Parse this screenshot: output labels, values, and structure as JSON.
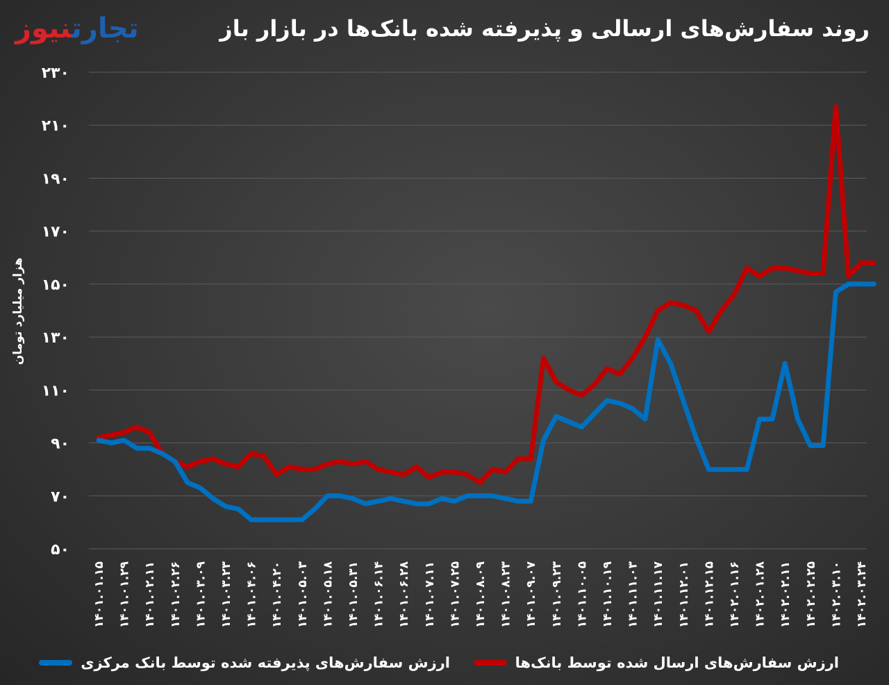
{
  "title": "روند سفارش‌های ارسالی و پذیرفته شده بانک‌ها در بازار باز",
  "logo": {
    "part1": "تجارت",
    "part2": "نیوز"
  },
  "chart_data": {
    "type": "line",
    "title": "روند سفارش‌های ارسالی و پذیرفته شده بانک‌ها در بازار باز",
    "ylabel": "هزار میلیارد تومان",
    "xlabel": "",
    "ylim": [
      50,
      230
    ],
    "yticks": [
      50,
      70,
      90,
      110,
      130,
      150,
      170,
      190,
      210,
      230
    ],
    "ytick_labels": [
      "۵۰",
      "۷۰",
      "۹۰",
      "۱۱۰",
      "۱۳۰",
      "۱۵۰",
      "۱۷۰",
      "۱۹۰",
      "۲۱۰",
      "۲۳۰"
    ],
    "grid": true,
    "legend_position": "bottom",
    "xtick_labels": [
      "۱۴۰۱.۰۱.۱۵",
      "۱۴۰۱.۰۱.۲۹",
      "۱۴۰۱.۰۲.۱۱",
      "۱۴۰۱.۰۲.۲۶",
      "۱۴۰۱.۰۳.۰۹",
      "۱۴۰۱.۰۳.۲۳",
      "۱۴۰۱.۰۴.۰۶",
      "۱۴۰۱.۰۴.۲۰",
      "۱۴۰۱.۰۵.۰۳",
      "۱۴۰۱.۰۵.۱۸",
      "۱۴۰۱.۰۵.۳۱",
      "۱۴۰۱.۰۶.۱۴",
      "۱۴۰۱.۰۶.۲۸",
      "۱۴۰۱.۰۷.۱۱",
      "۱۴۰۱.۰۷.۲۵",
      "۱۴۰۱.۰۸.۰۹",
      "۱۴۰۱.۰۸.۲۳",
      "۱۴۰۱.۰۹.۰۷",
      "۱۴۰۱.۰۹.۲۳",
      "۱۴۰۱.۱۰.۰۵",
      "۱۴۰۱.۱۰.۱۹",
      "۱۴۰۱.۱۱.۰۳",
      "۱۴۰۱.۱۱.۱۷",
      "۱۴۰۱.۱۲.۰۱",
      "۱۴۰۱.۱۲.۱۵",
      "۱۴۰۲.۰۱.۱۶",
      "۱۴۰۲.۰۱.۲۸",
      "۱۴۰۲.۰۲.۱۱",
      "۱۴۰۲.۰۲.۲۵",
      "۱۴۰۲.۰۳.۱۰",
      "۱۴۰۲.۰۳.۲۴"
    ],
    "series": [
      {
        "name": "ارزش سفارش‌های ارسال شده توسط بانک‌ها",
        "color": "#c00000",
        "x": [
          0,
          0.5,
          1,
          1.5,
          2,
          2.5,
          3,
          3.5,
          4,
          4.5,
          5,
          5.5,
          6,
          6.5,
          7,
          7.5,
          8,
          8.5,
          9,
          9.5,
          10,
          10.5,
          11,
          11.5,
          12,
          12.5,
          13,
          13.5,
          14,
          14.5,
          15,
          15.5,
          16,
          16.5,
          17,
          17.5,
          18,
          18.5,
          19,
          19.5,
          20,
          20.5,
          21,
          21.5,
          22,
          22.5,
          23,
          23.5,
          24,
          24.5,
          25,
          25.5,
          26,
          26.5,
          27,
          27.5,
          28,
          28.5,
          29,
          29.5,
          30,
          30.5
        ],
        "values": [
          92,
          93,
          94,
          96,
          94,
          86,
          83,
          81,
          83,
          84,
          82,
          81,
          86,
          85,
          78,
          81,
          80,
          80,
          82,
          83,
          82,
          83,
          80,
          79,
          78,
          81,
          77,
          79,
          79,
          78,
          75,
          80,
          79,
          84,
          84,
          122,
          113,
          110,
          108,
          112,
          118,
          116,
          122,
          130,
          140,
          143,
          142,
          140,
          132,
          140,
          146,
          156,
          153,
          156,
          156,
          155,
          154,
          154,
          217,
          153,
          158,
          158
        ],
        "marker": "none"
      },
      {
        "name": "ارزش سفارش‌های پذیرفته شده توسط بانک مرکزی",
        "color": "#0070c0",
        "x": [
          0,
          0.5,
          1,
          1.5,
          2,
          2.5,
          3,
          3.5,
          4,
          4.5,
          5,
          5.5,
          6,
          6.5,
          7,
          7.5,
          8,
          8.5,
          9,
          9.5,
          10,
          10.5,
          11,
          11.5,
          12,
          12.5,
          13,
          13.5,
          14,
          14.5,
          15,
          15.5,
          16,
          16.5,
          17,
          17.5,
          18,
          18.5,
          19,
          19.5,
          20,
          20.5,
          21,
          21.5,
          22,
          22.5,
          23,
          23.5,
          24,
          24.5,
          25,
          25.5,
          26,
          26.5,
          27,
          27.5,
          28,
          28.5,
          29,
          29.5,
          30,
          30.5
        ],
        "values": [
          91,
          90,
          91,
          88,
          88,
          86,
          83,
          75,
          73,
          69,
          66,
          65,
          61,
          61,
          61,
          61,
          61,
          65,
          70,
          70,
          69,
          67,
          68,
          69,
          68,
          67,
          67,
          69,
          68,
          70,
          70,
          70,
          69,
          68,
          68,
          91,
          100,
          98,
          96,
          101,
          106,
          105,
          103,
          99,
          129,
          120,
          106,
          92,
          80,
          80,
          80,
          80,
          99,
          99,
          120,
          99,
          89,
          89,
          147,
          150,
          150,
          150
        ],
        "marker": "none"
      }
    ]
  },
  "legend": {
    "red_label": "ارزش سفارش‌های ارسال شده توسط بانک‌ها",
    "blue_label": "ارزش سفارش‌های پذیرفته شده توسط بانک مرکزی"
  }
}
